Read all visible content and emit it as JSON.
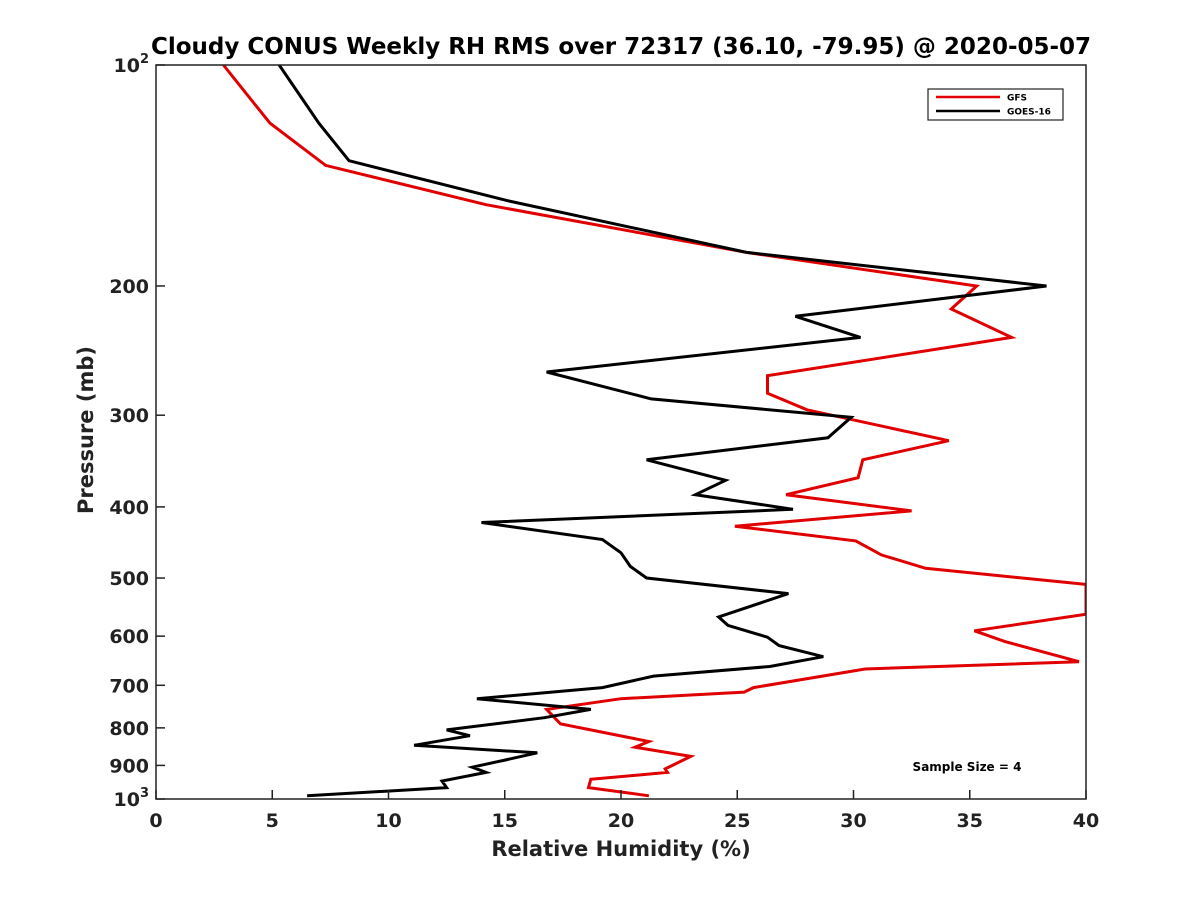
{
  "chart_data": {
    "type": "line",
    "title": "Cloudy CONUS Weekly RH RMS over 72317 (36.10, -79.95) @ 2020-05-07",
    "xlabel": "Relative Humidity (%)",
    "ylabel": "Pressure (mb)",
    "xlim": [
      0,
      40
    ],
    "ylim": [
      100,
      1000
    ],
    "yscale": "log",
    "y_reversed": true,
    "x_ticks": [
      0,
      5,
      10,
      15,
      20,
      25,
      30,
      35,
      40
    ],
    "x_tick_labels": [
      "0",
      "5",
      "10",
      "15",
      "20",
      "25",
      "30",
      "35",
      "40"
    ],
    "y_ticks": [
      100,
      200,
      300,
      400,
      500,
      600,
      700,
      800,
      900,
      1000
    ],
    "y_tick_labels": [
      {
        "base": "10",
        "exp": "2"
      },
      {
        "base": "200"
      },
      {
        "base": "300"
      },
      {
        "base": "400"
      },
      {
        "base": "500"
      },
      {
        "base": "600"
      },
      {
        "base": "700"
      },
      {
        "base": "800"
      },
      {
        "base": "900"
      },
      {
        "base": "10",
        "exp": "3"
      }
    ],
    "grid": false,
    "legend_position": "top-right",
    "annotation": "Sample Size = 4",
    "series": [
      {
        "name": "GFS",
        "color": "#e00000",
        "points": [
          {
            "x": 2.9,
            "p": 100
          },
          {
            "x": 4.9,
            "p": 120
          },
          {
            "x": 7.3,
            "p": 137
          },
          {
            "x": 14.2,
            "p": 155
          },
          {
            "x": 25.4,
            "p": 180
          },
          {
            "x": 35.3,
            "p": 200
          },
          {
            "x": 34.2,
            "p": 215
          },
          {
            "x": 36.8,
            "p": 235
          },
          {
            "x": 26.3,
            "p": 265
          },
          {
            "x": 26.3,
            "p": 280
          },
          {
            "x": 28.0,
            "p": 295
          },
          {
            "x": 34.1,
            "p": 325
          },
          {
            "x": 30.4,
            "p": 345
          },
          {
            "x": 30.2,
            "p": 365
          },
          {
            "x": 27.1,
            "p": 385
          },
          {
            "x": 32.5,
            "p": 405
          },
          {
            "x": 24.9,
            "p": 425
          },
          {
            "x": 30.1,
            "p": 445
          },
          {
            "x": 31.2,
            "p": 465
          },
          {
            "x": 33.1,
            "p": 485
          },
          {
            "x": 40.0,
            "p": 510
          },
          {
            "x": 40.0,
            "p": 560
          },
          {
            "x": 35.2,
            "p": 590
          },
          {
            "x": 36.5,
            "p": 610
          },
          {
            "x": 39.7,
            "p": 650
          },
          {
            "x": 30.5,
            "p": 665
          },
          {
            "x": 25.7,
            "p": 705
          },
          {
            "x": 25.3,
            "p": 715
          },
          {
            "x": 20.0,
            "p": 730
          },
          {
            "x": 16.8,
            "p": 755
          },
          {
            "x": 17.4,
            "p": 790
          },
          {
            "x": 21.2,
            "p": 835
          },
          {
            "x": 20.6,
            "p": 850
          },
          {
            "x": 23.0,
            "p": 875
          },
          {
            "x": 21.9,
            "p": 910
          },
          {
            "x": 22.0,
            "p": 920
          },
          {
            "x": 18.7,
            "p": 940
          },
          {
            "x": 18.6,
            "p": 965
          },
          {
            "x": 21.2,
            "p": 990
          }
        ]
      },
      {
        "name": "GOES-16",
        "color": "#000000",
        "points": [
          {
            "x": 5.3,
            "p": 100
          },
          {
            "x": 7.0,
            "p": 120
          },
          {
            "x": 8.3,
            "p": 135
          },
          {
            "x": 15.1,
            "p": 153
          },
          {
            "x": 25.4,
            "p": 180
          },
          {
            "x": 38.3,
            "p": 200
          },
          {
            "x": 27.5,
            "p": 220
          },
          {
            "x": 30.3,
            "p": 235
          },
          {
            "x": 16.8,
            "p": 262
          },
          {
            "x": 21.3,
            "p": 285
          },
          {
            "x": 29.9,
            "p": 302
          },
          {
            "x": 28.9,
            "p": 322
          },
          {
            "x": 21.1,
            "p": 345
          },
          {
            "x": 24.5,
            "p": 368
          },
          {
            "x": 23.2,
            "p": 385
          },
          {
            "x": 27.4,
            "p": 403
          },
          {
            "x": 14.0,
            "p": 420
          },
          {
            "x": 19.2,
            "p": 443
          },
          {
            "x": 20.0,
            "p": 462
          },
          {
            "x": 20.4,
            "p": 482
          },
          {
            "x": 21.1,
            "p": 500
          },
          {
            "x": 27.2,
            "p": 525
          },
          {
            "x": 24.2,
            "p": 565
          },
          {
            "x": 24.6,
            "p": 580
          },
          {
            "x": 26.3,
            "p": 602
          },
          {
            "x": 26.8,
            "p": 618
          },
          {
            "x": 28.7,
            "p": 640
          },
          {
            "x": 26.4,
            "p": 660
          },
          {
            "x": 21.4,
            "p": 680
          },
          {
            "x": 19.2,
            "p": 705
          },
          {
            "x": 13.8,
            "p": 730
          },
          {
            "x": 18.7,
            "p": 755
          },
          {
            "x": 16.7,
            "p": 775
          },
          {
            "x": 12.5,
            "p": 805
          },
          {
            "x": 13.5,
            "p": 820
          },
          {
            "x": 11.1,
            "p": 845
          },
          {
            "x": 16.4,
            "p": 865
          },
          {
            "x": 15.0,
            "p": 885
          },
          {
            "x": 13.6,
            "p": 905
          },
          {
            "x": 14.2,
            "p": 920
          },
          {
            "x": 12.3,
            "p": 945
          },
          {
            "x": 12.5,
            "p": 965
          },
          {
            "x": 6.5,
            "p": 990
          }
        ]
      }
    ]
  }
}
